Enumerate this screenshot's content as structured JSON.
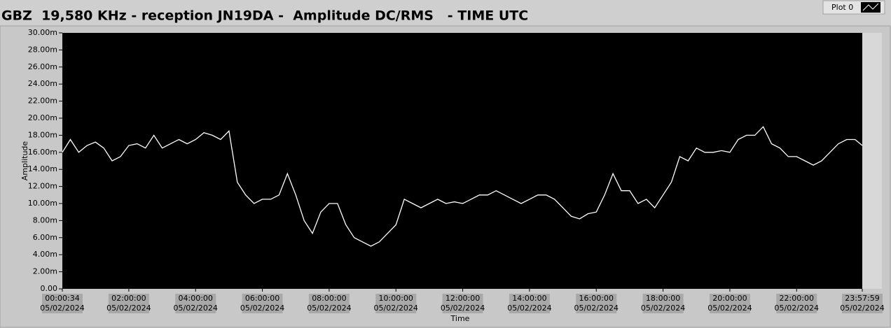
{
  "chart_data": {
    "type": "line",
    "title": "GBZ  19,580 KHz - reception JN19DA -  Amplitude DC/RMS   - TIME UTC",
    "xlabel": "Time",
    "ylabel": "Amplitude",
    "x": [
      0.0094,
      0.25,
      0.5,
      0.75,
      1,
      1.25,
      1.5,
      1.75,
      2,
      2.25,
      2.5,
      2.75,
      3,
      3.25,
      3.5,
      3.75,
      4,
      4.25,
      4.5,
      4.75,
      5,
      5.25,
      5.5,
      5.75,
      6,
      6.25,
      6.5,
      6.75,
      7,
      7.25,
      7.5,
      7.75,
      8,
      8.25,
      8.5,
      8.75,
      9,
      9.25,
      9.5,
      9.75,
      10,
      10.25,
      10.5,
      10.75,
      11,
      11.25,
      11.5,
      11.75,
      12,
      12.25,
      12.5,
      12.75,
      13,
      13.25,
      13.5,
      13.75,
      14,
      14.25,
      14.5,
      14.75,
      15,
      15.25,
      15.5,
      15.75,
      16,
      16.25,
      16.5,
      16.75,
      17,
      17.25,
      17.5,
      17.75,
      18,
      18.25,
      18.5,
      18.75,
      19,
      19.25,
      19.5,
      19.75,
      20,
      20.25,
      20.5,
      20.75,
      21,
      21.25,
      21.5,
      21.75,
      22,
      22.25,
      22.5,
      22.75,
      23,
      23.25,
      23.5,
      23.75,
      23.9664
    ],
    "series": [
      {
        "name": "Plot 0",
        "color": "#ffffff",
        "values": [
          16.0,
          17.5,
          16.0,
          16.8,
          17.2,
          16.5,
          15.0,
          15.5,
          16.8,
          17.0,
          16.5,
          18.0,
          16.5,
          17.0,
          17.5,
          17.0,
          17.5,
          18.3,
          18.0,
          17.5,
          18.5,
          12.5,
          11.0,
          10.0,
          10.5,
          10.5,
          11.0,
          13.5,
          11.0,
          8.0,
          6.5,
          9.0,
          10.0,
          10.0,
          7.5,
          6.0,
          5.5,
          5.0,
          5.5,
          6.5,
          7.5,
          10.5,
          10.0,
          9.5,
          10.0,
          10.5,
          10.0,
          10.2,
          10.0,
          10.5,
          11.0,
          11.0,
          11.5,
          11.0,
          10.5,
          10.0,
          10.5,
          11.0,
          11.0,
          10.5,
          9.5,
          8.5,
          8.2,
          8.8,
          9.0,
          11.0,
          13.5,
          11.5,
          11.5,
          10.0,
          10.5,
          9.5,
          11.0,
          12.5,
          15.5,
          15.0,
          16.5,
          16.0,
          16.0,
          16.2,
          16.0,
          17.5,
          18.0,
          18.0,
          19.0,
          17.0,
          16.5,
          15.5,
          15.5,
          15.0,
          14.5,
          15.0,
          16.0,
          17.0,
          17.5,
          17.5,
          16.8
        ]
      }
    ],
    "xlim": [
      0.0094,
      23.9664
    ],
    "ylim": [
      0,
      30
    ],
    "yticks": [
      {
        "value": 0,
        "label": "0.00"
      },
      {
        "value": 2,
        "label": "2.00m"
      },
      {
        "value": 4,
        "label": "4.00m"
      },
      {
        "value": 6,
        "label": "6.00m"
      },
      {
        "value": 8,
        "label": "8.00m"
      },
      {
        "value": 10,
        "label": "10.00m"
      },
      {
        "value": 12,
        "label": "12.00m"
      },
      {
        "value": 14,
        "label": "14.00m"
      },
      {
        "value": 16,
        "label": "16.00m"
      },
      {
        "value": 18,
        "label": "18.00m"
      },
      {
        "value": 20,
        "label": "20.00m"
      },
      {
        "value": 22,
        "label": "22.00m"
      },
      {
        "value": 24,
        "label": "24.00m"
      },
      {
        "value": 26,
        "label": "26.00m"
      },
      {
        "value": 28,
        "label": "28.00m"
      },
      {
        "value": 30,
        "label": "30.00m"
      }
    ],
    "xticks": [
      {
        "value": 0.0094,
        "label": "00:00:34"
      },
      {
        "value": 2,
        "label": "02:00:00"
      },
      {
        "value": 4,
        "label": "04:00:00"
      },
      {
        "value": 6,
        "label": "06:00:00"
      },
      {
        "value": 8,
        "label": "08:00:00"
      },
      {
        "value": 10,
        "label": "10:00:00"
      },
      {
        "value": 12,
        "label": "12:00:00"
      },
      {
        "value": 14,
        "label": "14:00:00"
      },
      {
        "value": 16,
        "label": "16:00:00"
      },
      {
        "value": 18,
        "label": "18:00:00"
      },
      {
        "value": 20,
        "label": "20:00:00"
      },
      {
        "value": 22,
        "label": "22:00:00"
      },
      {
        "value": 23.9664,
        "label": "23:57:59"
      }
    ],
    "xtick_dates": [
      "05/02/2024",
      "05/02/2024",
      "05/02/2024",
      "05/02/2024",
      "05/02/2024",
      "05/02/2024",
      "05/02/2024",
      "05/02/2024",
      "05/02/2024",
      "05/02/2024",
      "05/02/2024",
      "05/02/2024",
      "05/02/2024"
    ]
  }
}
